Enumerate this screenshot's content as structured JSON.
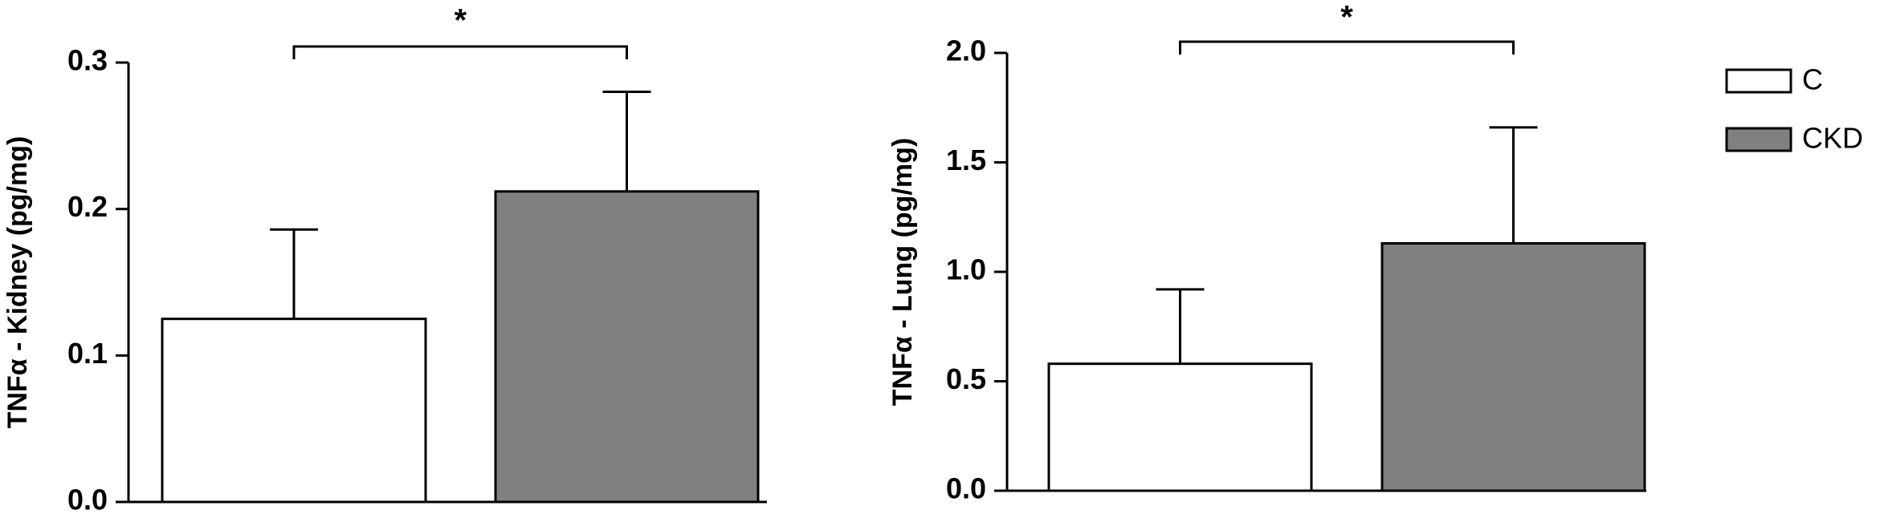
{
  "chart_data": [
    {
      "type": "bar",
      "y_label": "TNFα - Kidney (pg/mg)",
      "annotation": "*",
      "values": [
        0.125,
        0.212
      ],
      "errors": [
        0.061,
        0.068
      ],
      "colors": [
        "#ffffff",
        "#808080"
      ],
      "ylim": [
        0,
        0.3
      ],
      "yticks": [
        {
          "value": 0,
          "label": "0.0"
        },
        0.1,
        0.2,
        0.3
      ]
    },
    {
      "type": "bar",
      "y_label": "TNFα - Lung (pg/mg)",
      "annotation": "*",
      "values": [
        0.58,
        1.13
      ],
      "errors": [
        0.34,
        0.53
      ],
      "colors": [
        "#ffffff",
        "#808080"
      ],
      "ylim": [
        0,
        2.0
      ],
      "yticks": [
        {
          "value": 0,
          "label": "0.0"
        },
        0.5,
        {
          "value": 1.0,
          "label": "1.0"
        },
        1.5,
        {
          "value": 2.0,
          "label": "2.0"
        }
      ]
    }
  ],
  "legend": {
    "entries": [
      {
        "name": "C",
        "color": "#ffffff"
      },
      {
        "name": "CKD",
        "color": "#808080"
      }
    ]
  }
}
